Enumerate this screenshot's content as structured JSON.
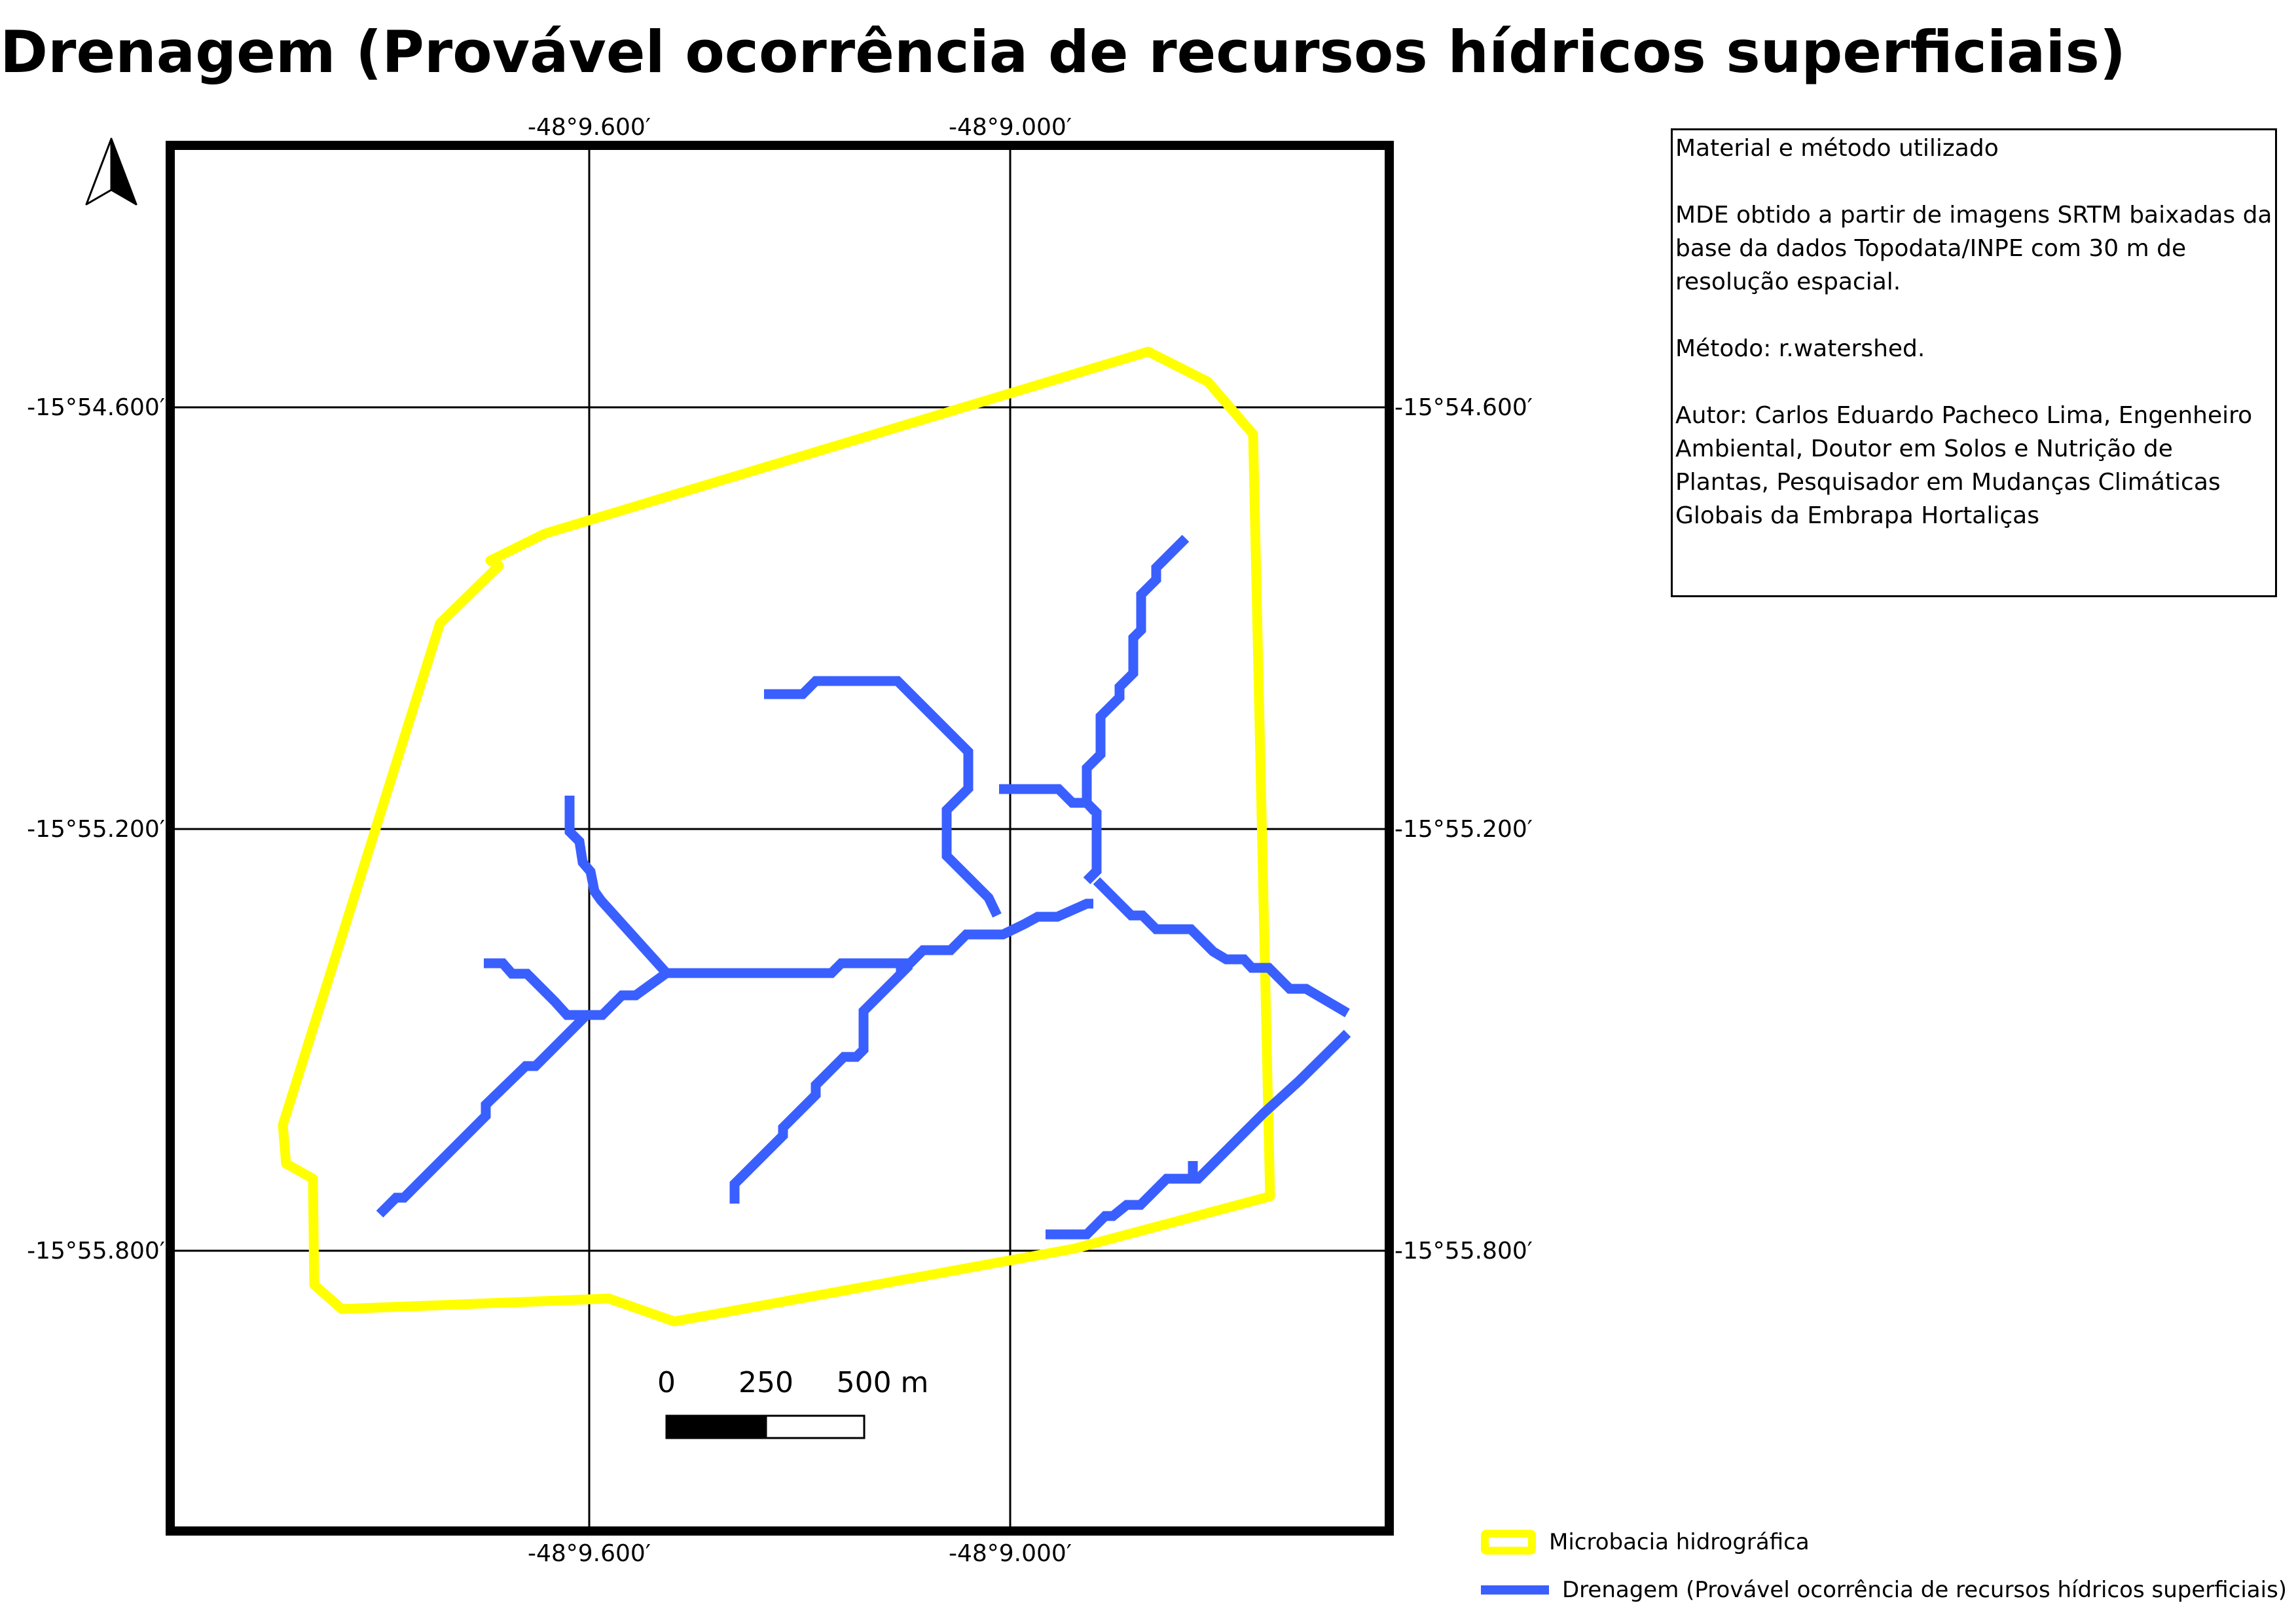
{
  "title": "Drenagem (Provável ocorrência de recursos hídricos superficiais)",
  "map": {
    "longitude_ticks": [
      "-48°9.600′",
      "-48°9.000′"
    ],
    "latitude_ticks": [
      "-15°54.600′",
      "-15°55.200′",
      "-15°55.800′"
    ],
    "north_arrow_icon": "north-arrow-icon",
    "colors": {
      "microbacia": "#ffff00",
      "drenagem": "#3a5fff",
      "frame": "#000000"
    }
  },
  "scale_bar": {
    "labels": [
      "0",
      "250",
      "500 m"
    ]
  },
  "info": {
    "heading": "Material e método utilizado",
    "source": "MDE obtido a partir de imagens SRTM baixadas da base da dados Topodata/INPE com 30 m de resolução espacial.",
    "method": "Método: r.watershed.",
    "author": "Autor: Carlos Eduardo Pacheco Lima, Engenheiro Ambiental, Doutor em Solos e Nutrição de Plantas, Pesquisador em Mudanças Climáticas Globais da Embrapa Hortaliças"
  },
  "legend": {
    "items": [
      {
        "label": "Microbacia hidrográfica",
        "symbol": "polygon"
      },
      {
        "label": "Drenagem (Provável ocorrência de recursos hídricos superficiais)",
        "symbol": "line"
      }
    ]
  }
}
